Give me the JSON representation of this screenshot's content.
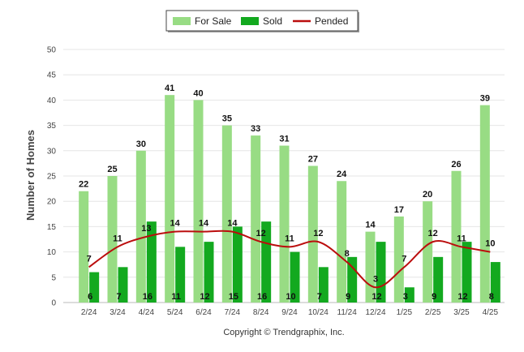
{
  "chart_data": {
    "type": "bar",
    "categories": [
      "2/24",
      "3/24",
      "4/24",
      "5/24",
      "6/24",
      "7/24",
      "8/24",
      "9/24",
      "10/24",
      "11/24",
      "12/24",
      "1/25",
      "2/25",
      "3/25",
      "4/25"
    ],
    "series": [
      {
        "name": "For Sale",
        "kind": "bar",
        "color": "#98dc84",
        "values": [
          22,
          25,
          30,
          41,
          40,
          35,
          33,
          31,
          27,
          24,
          14,
          17,
          20,
          26,
          39
        ]
      },
      {
        "name": "Sold",
        "kind": "bar",
        "color": "#13a91f",
        "values": [
          6,
          7,
          16,
          11,
          12,
          15,
          16,
          10,
          7,
          9,
          12,
          3,
          9,
          12,
          8
        ]
      },
      {
        "name": "Pended",
        "kind": "line",
        "color": "#bb0d0d",
        "values": [
          7,
          11,
          13,
          14,
          14,
          14,
          12,
          11,
          12,
          8,
          3,
          7,
          12,
          11,
          10
        ]
      }
    ],
    "ylabel": "Number of Homes",
    "xlabel": "",
    "ylim": [
      0,
      50
    ],
    "yticks": [
      0,
      5,
      10,
      15,
      20,
      25,
      30,
      35,
      40,
      45,
      50
    ],
    "grid": true,
    "legend_position": "top-center"
  },
  "credit": "Copyright © Trendgraphix, Inc."
}
